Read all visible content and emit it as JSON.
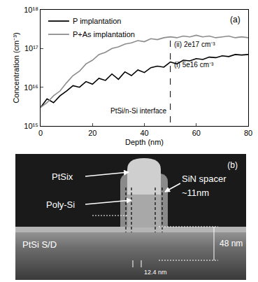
{
  "chart_data": {
    "type": "line",
    "x_label": "Depth (nm)",
    "y_label": "Concentration (cm⁻³)",
    "x": [
      0,
      2.5,
      5,
      7.5,
      10,
      12.5,
      15,
      17.5,
      20,
      22.5,
      25,
      27.5,
      30,
      32.5,
      35,
      37.5,
      40,
      42.5,
      45,
      47.5,
      50,
      52.5,
      55,
      57.5,
      60,
      62.5,
      65,
      67.5,
      70,
      72.5,
      75,
      77.5,
      80
    ],
    "series": [
      {
        "name": "P implantation",
        "color": "#000000",
        "values": [
          3000000000000000.0,
          5000000000000000.0,
          4000000000000000.0,
          6000000000000000.0,
          8000000000000000.0,
          1.1e+16,
          1e+16,
          1.4e+16,
          1.2e+16,
          1.7e+16,
          1.5e+16,
          2.2e+16,
          1.6e+16,
          2.5e+16,
          2e+16,
          2.8e+16,
          2.4e+16,
          3.2e+16,
          3.5e+16,
          3.3e+16,
          4.5e+16,
          4e+16,
          5e+16,
          4.8e+16,
          5.5e+16,
          5.2e+16,
          6e+16,
          5.8e+16,
          6.5e+16,
          6.2e+16,
          7e+16,
          6.8e+16,
          7e+16
        ]
      },
      {
        "name": "P+As implantation",
        "color": "#8c8c8c",
        "values": [
          3000000000000000.0,
          4000000000000000.0,
          6000000000000000.0,
          8000000000000000.0,
          1.3e+16,
          2e+16,
          2.6e+16,
          4e+16,
          5e+16,
          7e+16,
          8e+16,
          1e+17,
          1.1e+17,
          1.3e+17,
          1.4e+17,
          1.6e+17,
          1.5e+17,
          1.8e+17,
          1.7e+17,
          1.9e+17,
          2e+17,
          1.9e+17,
          2.1e+17,
          2e+17,
          2.2e+17,
          2e+17,
          2.1e+17,
          1.9e+17,
          2e+17,
          2.1e+17,
          1.9e+17,
          2e+17,
          1.9e+17
        ]
      }
    ],
    "xlim": [
      0,
      80
    ],
    "xticks": [
      0,
      20,
      40,
      60,
      80
    ],
    "ylim": [
      1000000000000000.0,
      1e+18
    ],
    "yticks": [
      {
        "value": 1000000000000000.0,
        "label": "10¹⁵"
      },
      {
        "value": 1e+16,
        "label": "10¹⁶"
      },
      {
        "value": 1e+17,
        "label": "10¹⁷"
      },
      {
        "value": 1e+18,
        "label": "10¹⁸"
      }
    ],
    "log": "y",
    "grid": false,
    "legend": "upper left",
    "reference_lines": [
      {
        "x": 50,
        "line_style": "dash"
      }
    ],
    "annotations": {
      "panel": "(a)",
      "level_ii": "(ii) 2e17 cm⁻³",
      "level_i": "(i) 5e16 cm⁻³",
      "interface": "PtSi/n-Si interface"
    }
  },
  "image_panel": {
    "letter": "(b)",
    "labels": {
      "silicide_gate": "PtSix",
      "gate": "Poly-Si",
      "spacer": "SiN spacer",
      "spacer_width": "~11nm",
      "source_drain": "PtSi S/D",
      "junction_depth": "48 nm",
      "scale_mark": "12.4 nm"
    }
  }
}
